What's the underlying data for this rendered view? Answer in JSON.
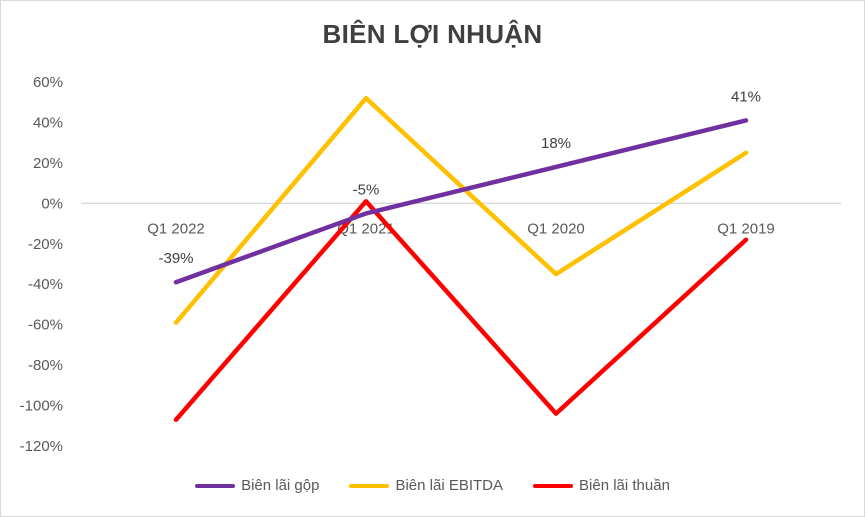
{
  "chart_data": {
    "type": "line",
    "title": "BIÊN LỢI NHUẬN",
    "categories": [
      "Q1 2022",
      "Q1 2021",
      "Q1 2020",
      "Q1 2019"
    ],
    "ylim": [
      -120,
      60
    ],
    "yticks": [
      60,
      40,
      20,
      0,
      -20,
      -40,
      -60,
      -80,
      -100,
      -120
    ],
    "ytick_labels": [
      "60%",
      "40%",
      "20%",
      "0%",
      "-20%",
      "-40%",
      "-60%",
      "-80%",
      "-100%",
      "-120%"
    ],
    "grid": false,
    "legend_position": "bottom",
    "series": [
      {
        "name": "Biên lãi gộp",
        "color": "#7030A0",
        "values": [
          -39,
          -5,
          18,
          41
        ],
        "labels": [
          "-39%",
          "-5%",
          "18%",
          "41%"
        ]
      },
      {
        "name": "Biên lãi EBITDA",
        "color": "#FFC000",
        "values": [
          -59,
          52,
          -35,
          25
        ],
        "labels": []
      },
      {
        "name": "Biên lãi thuần",
        "color": "#FF0000",
        "values": [
          -107,
          1,
          -104,
          -18
        ],
        "labels": []
      }
    ]
  }
}
